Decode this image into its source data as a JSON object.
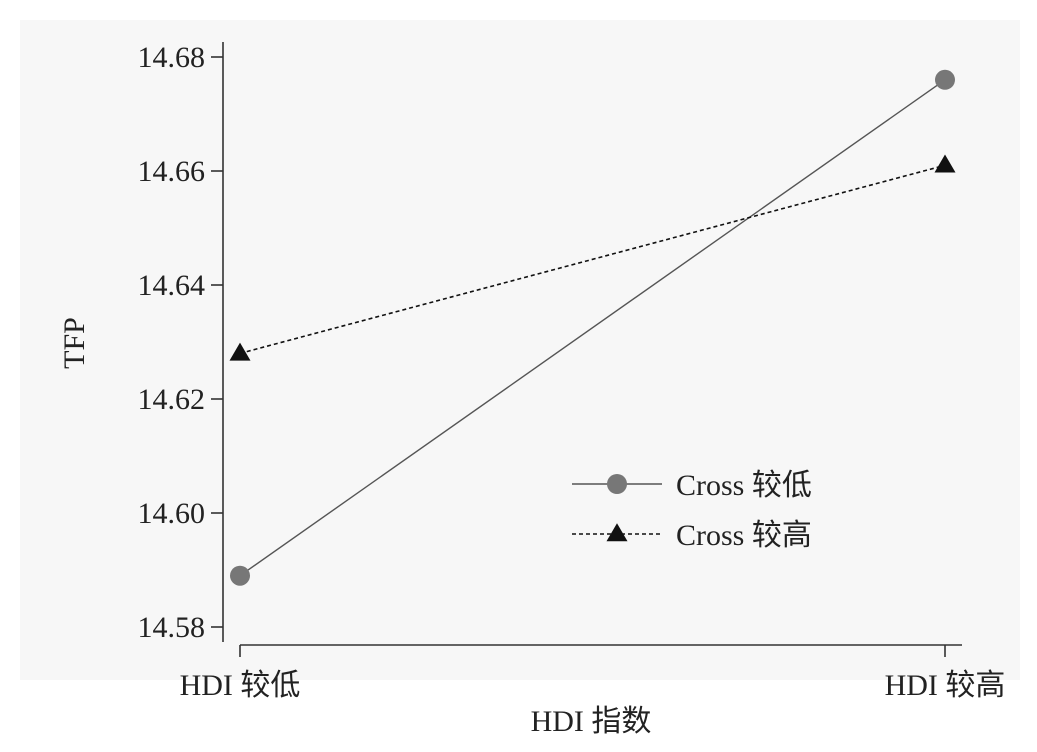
{
  "chart_data": {
    "type": "line",
    "title": "",
    "xlabel": "HDI 指数",
    "ylabel": "TFP",
    "categories": [
      "HDI 较低",
      "HDI 较高"
    ],
    "ylim": [
      14.58,
      14.68
    ],
    "yticks": [
      "14.58",
      "14.60",
      "14.62",
      "14.64",
      "14.66",
      "14.68"
    ],
    "grid": false,
    "legend_position": "center-right",
    "series": [
      {
        "name": "Cross 较低",
        "values": [
          14.589,
          14.676
        ],
        "marker": "circle",
        "line_style": "solid",
        "color": "#555555",
        "marker_color": "#777777"
      },
      {
        "name": "Cross 较高",
        "values": [
          14.628,
          14.661
        ],
        "marker": "triangle",
        "line_style": "dashed",
        "color": "#111111",
        "marker_color": "#111111"
      }
    ],
    "background": "#ffffff",
    "plot_background": "#f7f7f7"
  }
}
